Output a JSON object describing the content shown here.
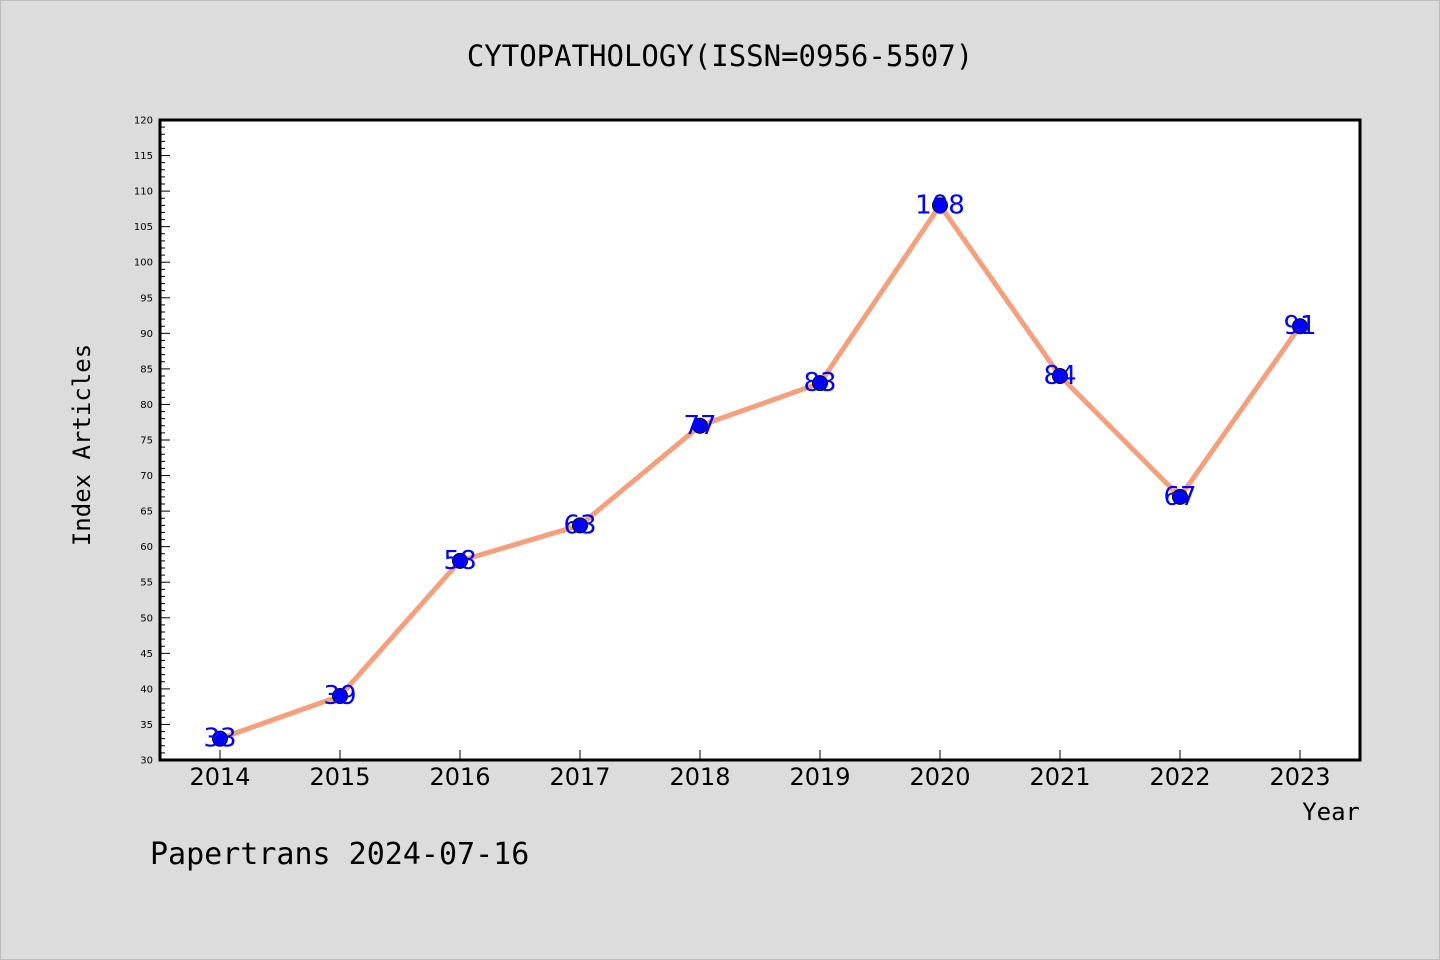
{
  "chart_data": {
    "type": "line",
    "title": "CYTOPATHOLOGY(ISSN=0956-5507)",
    "xlabel": "Year",
    "ylabel": "Index Articles",
    "categories": [
      "2014",
      "2015",
      "2016",
      "2017",
      "2018",
      "2019",
      "2020",
      "2021",
      "2022",
      "2023"
    ],
    "series": [
      {
        "values": [
          33,
          39,
          58,
          63,
          77,
          83,
          108,
          84,
          67,
          91
        ]
      }
    ],
    "ylim": [
      30,
      120
    ],
    "y_major_step": 5,
    "y_minor_step": 1,
    "grid": false,
    "data_labels": true,
    "colors": {
      "background": "#dcdcdc",
      "plot_background": "#ffffff",
      "line": "#f4a07c",
      "marker": "#0000ff",
      "data_label": "#0000ff"
    }
  },
  "footer": {
    "text": "Papertrans 2024-07-16"
  }
}
